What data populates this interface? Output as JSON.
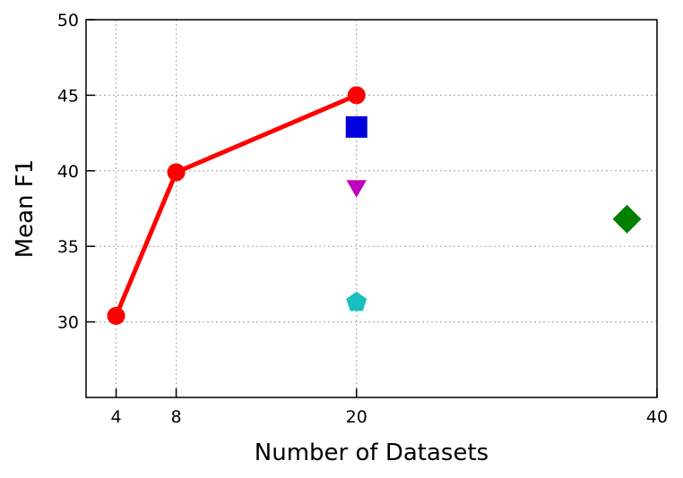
{
  "chart_data": {
    "type": "scatter",
    "title": "",
    "xlabel": "Number of Datasets",
    "ylabel": "Mean F1",
    "xlim": [
      2,
      40
    ],
    "ylim": [
      25,
      50
    ],
    "xticks": [
      4,
      8,
      20,
      40
    ],
    "yticks": [
      30,
      35,
      40,
      45,
      50
    ],
    "grid": true,
    "series": [
      {
        "type": "line",
        "marker": "circle",
        "color": "#ff0000",
        "points": [
          {
            "x": 4,
            "y": 30.4
          },
          {
            "x": 8,
            "y": 39.9
          },
          {
            "x": 20,
            "y": 45.0
          }
        ]
      },
      {
        "type": "scatter",
        "marker": "square",
        "color": "#0000dd",
        "points": [
          {
            "x": 20,
            "y": 42.9
          }
        ]
      },
      {
        "type": "scatter",
        "marker": "triangle-down",
        "color": "#bf00bf",
        "points": [
          {
            "x": 20,
            "y": 39.0
          }
        ]
      },
      {
        "type": "scatter",
        "marker": "pentagon",
        "color": "#17bfbf",
        "points": [
          {
            "x": 20,
            "y": 31.3
          }
        ]
      },
      {
        "type": "scatter",
        "marker": "diamond",
        "color": "#008000",
        "points": [
          {
            "x": 38,
            "y": 36.8
          }
        ]
      }
    ]
  }
}
